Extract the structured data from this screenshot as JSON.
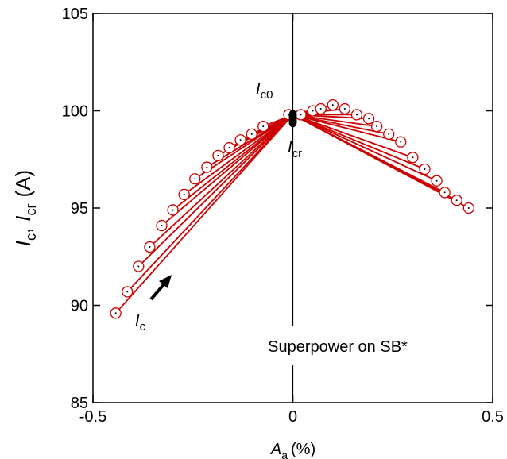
{
  "chart_data": {
    "type": "scatter",
    "xlabel": {
      "main": "A",
      "sub": "a",
      "unit": "(%)"
    },
    "ylabel": {
      "main1": "I",
      "sub1": "c",
      "sep": ",",
      "main2": "I",
      "sub2": "cr",
      "unit": "(A)"
    },
    "annotations": {
      "ic0": {
        "main": "I",
        "sub": "c0"
      },
      "icr": {
        "main": "I",
        "sub": "cr"
      },
      "ic": {
        "main": "I",
        "sub": "c"
      },
      "note": "Superpower on SB*"
    },
    "xlim": [
      -0.5,
      0.5
    ],
    "xticks": [
      -0.5,
      0,
      0.5
    ],
    "ylim": [
      85,
      105
    ],
    "yticks": [
      85,
      90,
      95,
      100,
      105
    ],
    "series": [
      {
        "name": "Ic",
        "color": "#cc0000",
        "x": [
          -0.443,
          -0.414,
          -0.386,
          -0.358,
          -0.328,
          -0.3,
          -0.272,
          -0.245,
          -0.215,
          -0.187,
          -0.159,
          -0.131,
          -0.103,
          -0.074,
          -0.01,
          0.02,
          0.05,
          0.07,
          0.1,
          0.13,
          0.16,
          0.19,
          0.21,
          0.24,
          0.27,
          0.3,
          0.33,
          0.36,
          0.38,
          0.41,
          0.44
        ],
        "values": [
          89.6,
          90.7,
          92.0,
          93.0,
          94.1,
          94.9,
          95.7,
          96.5,
          97.1,
          97.7,
          98.1,
          98.5,
          98.8,
          99.2,
          99.8,
          99.8,
          100.0,
          100.1,
          100.3,
          100.1,
          99.8,
          99.6,
          99.2,
          98.8,
          98.4,
          97.6,
          97.0,
          96.4,
          95.8,
          95.4,
          95.0
        ]
      },
      {
        "name": "Icr",
        "color": "#000000",
        "x": [
          0,
          0,
          0,
          0,
          0
        ],
        "values": [
          99.8,
          99.7,
          99.6,
          99.5,
          99.4
        ]
      }
    ]
  }
}
